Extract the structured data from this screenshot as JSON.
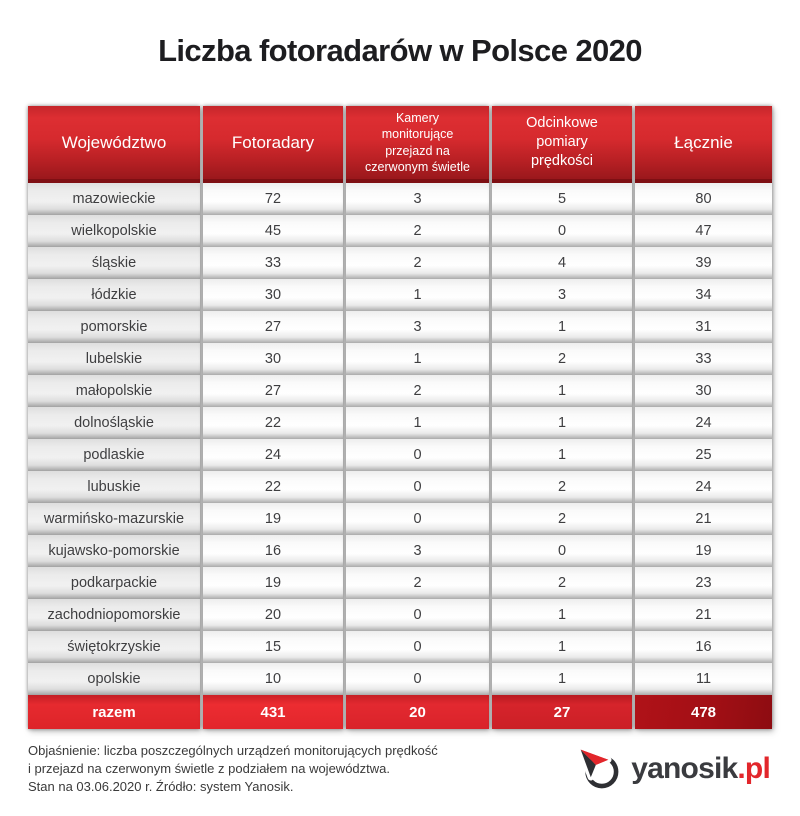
{
  "title": "Liczba fotoradarów w Polsce 2020",
  "chart_data": {
    "type": "table",
    "title": "Liczba fotoradarów w Polsce 2020",
    "columns": [
      "Województwo",
      "Fotoradary",
      "Kamery monitorujące przejazd na czerwonym świetle",
      "Odcinkowe pomiary prędkości",
      "Łącznie"
    ],
    "rows": [
      [
        "mazowieckie",
        72,
        3,
        5,
        80
      ],
      [
        "wielkopolskie",
        45,
        2,
        0,
        47
      ],
      [
        "śląskie",
        33,
        2,
        4,
        39
      ],
      [
        "łódzkie",
        30,
        1,
        3,
        34
      ],
      [
        "pomorskie",
        27,
        3,
        1,
        31
      ],
      [
        "lubelskie",
        30,
        1,
        2,
        33
      ],
      [
        "małopolskie",
        27,
        2,
        1,
        30
      ],
      [
        "dolnośląskie",
        22,
        1,
        1,
        24
      ],
      [
        "podlaskie",
        24,
        0,
        1,
        25
      ],
      [
        "lubuskie",
        22,
        0,
        2,
        24
      ],
      [
        "warmińsko-mazurskie",
        19,
        0,
        2,
        21
      ],
      [
        "kujawsko-pomorskie",
        16,
        3,
        0,
        19
      ],
      [
        "podkarpackie",
        19,
        2,
        2,
        23
      ],
      [
        "zachodniopomorskie",
        20,
        0,
        1,
        21
      ],
      [
        "świętokrzyskie",
        15,
        0,
        1,
        16
      ],
      [
        "opolskie",
        10,
        0,
        1,
        11
      ]
    ],
    "total_row": [
      "razem",
      431,
      20,
      27,
      478
    ]
  },
  "footer": {
    "line1": "Objaśnienie: liczba poszczególnych urządzeń monitorujących prędkość",
    "line2": "i przejazd na czerwonym świetle z podziałem na województwa.",
    "line3": "Stan na 03.06.2020 r. Źródło: system Yanosik."
  },
  "logo": {
    "name": "yanosik",
    "tld": ".pl"
  },
  "colors": {
    "header_red": "#d62a2e",
    "header_dark_bar": "#7e0f13",
    "total_red": "#e2262c",
    "total_dark_red": "#9c0f15",
    "brand_red": "#e2262b",
    "brand_dark": "#3a3b3f"
  }
}
